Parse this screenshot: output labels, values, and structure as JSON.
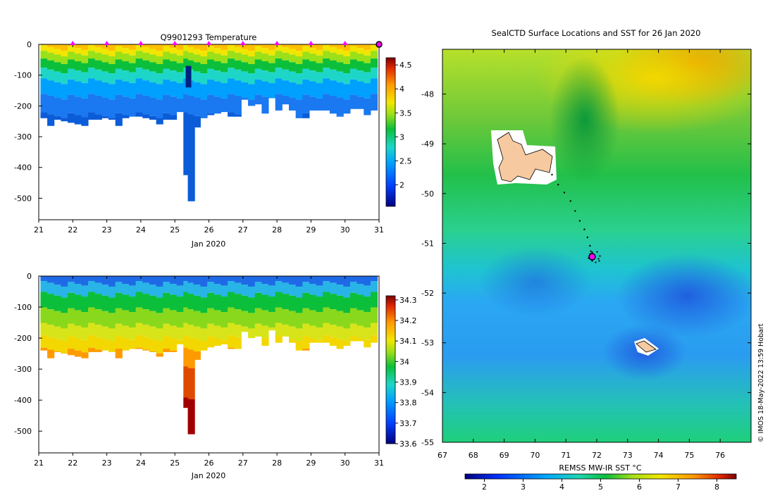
{
  "chart_data": [
    {
      "type": "heatmap",
      "title": "Q9901293  Temperature",
      "xlabel": "Jan 2020",
      "ylabel": "",
      "x_ticks": [
        "21",
        "22",
        "23",
        "24",
        "25",
        "26",
        "27",
        "28",
        "29",
        "30",
        "31"
      ],
      "xlim": [
        21,
        31
      ],
      "y_ticks": [
        "0",
        "-100",
        "-200",
        "-300",
        "-400",
        "-500"
      ],
      "ylim": [
        -570,
        0
      ],
      "colorbar": {
        "ticks": [
          "4.5",
          "4",
          "3.5",
          "3",
          "2.5",
          "2"
        ],
        "range": [
          1.55,
          4.65
        ]
      },
      "marker_days": [
        22,
        23,
        24,
        25,
        26,
        27,
        28,
        29,
        30
      ],
      "current_day": 31,
      "profiles": [
        {
          "day": 21.15,
          "depth": 240
        },
        {
          "day": 21.35,
          "depth": 265
        },
        {
          "day": 21.55,
          "depth": 245
        },
        {
          "day": 21.75,
          "depth": 250
        },
        {
          "day": 21.95,
          "depth": 255
        },
        {
          "day": 22.15,
          "depth": 260
        },
        {
          "day": 22.35,
          "depth": 265
        },
        {
          "day": 22.55,
          "depth": 245
        },
        {
          "day": 22.75,
          "depth": 245
        },
        {
          "day": 22.95,
          "depth": 240
        },
        {
          "day": 23.15,
          "depth": 245
        },
        {
          "day": 23.35,
          "depth": 265
        },
        {
          "day": 23.55,
          "depth": 240
        },
        {
          "day": 23.75,
          "depth": 235
        },
        {
          "day": 23.95,
          "depth": 235
        },
        {
          "day": 24.15,
          "depth": 240
        },
        {
          "day": 24.35,
          "depth": 245
        },
        {
          "day": 24.55,
          "depth": 260
        },
        {
          "day": 24.75,
          "depth": 245
        },
        {
          "day": 24.95,
          "depth": 245
        },
        {
          "day": 25.15,
          "depth": 220
        },
        {
          "day": 25.35,
          "depth": 425
        },
        {
          "day": 25.48,
          "depth": 510
        },
        {
          "day": 25.65,
          "depth": 270
        },
        {
          "day": 25.85,
          "depth": 240
        },
        {
          "day": 26.05,
          "depth": 230
        },
        {
          "day": 26.25,
          "depth": 225
        },
        {
          "day": 26.45,
          "depth": 220
        },
        {
          "day": 26.65,
          "depth": 235
        },
        {
          "day": 26.85,
          "depth": 235
        },
        {
          "day": 27.05,
          "depth": 180
        },
        {
          "day": 27.25,
          "depth": 200
        },
        {
          "day": 27.45,
          "depth": 195
        },
        {
          "day": 27.65,
          "depth": 225
        },
        {
          "day": 27.85,
          "depth": 175
        },
        {
          "day": 28.05,
          "depth": 215
        },
        {
          "day": 28.25,
          "depth": 195
        },
        {
          "day": 28.45,
          "depth": 215
        },
        {
          "day": 28.65,
          "depth": 240
        },
        {
          "day": 28.85,
          "depth": 240
        },
        {
          "day": 29.05,
          "depth": 215
        },
        {
          "day": 29.25,
          "depth": 215
        },
        {
          "day": 29.45,
          "depth": 215
        },
        {
          "day": 29.65,
          "depth": 225
        },
        {
          "day": 29.85,
          "depth": 235
        },
        {
          "day": 30.05,
          "depth": 225
        },
        {
          "day": 30.25,
          "depth": 210
        },
        {
          "day": 30.45,
          "depth": 210
        },
        {
          "day": 30.65,
          "depth": 230
        },
        {
          "day": 30.85,
          "depth": 215
        }
      ]
    },
    {
      "type": "heatmap",
      "title": "",
      "xlabel": "Jan 2020",
      "ylabel": "",
      "x_ticks": [
        "21",
        "22",
        "23",
        "24",
        "25",
        "26",
        "27",
        "28",
        "29",
        "30",
        "31"
      ],
      "xlim": [
        21,
        31
      ],
      "y_ticks": [
        "0",
        "-100",
        "-200",
        "-300",
        "-400",
        "-500"
      ],
      "ylim": [
        -570,
        0
      ],
      "colorbar": {
        "ticks": [
          "34.3",
          "34.2",
          "34.1",
          "34",
          "33.9",
          "33.8",
          "33.7",
          "33.6"
        ],
        "range": [
          33.6,
          34.32
        ]
      }
    },
    {
      "type": "heatmap",
      "title": "SealCTD Surface Locations and SST for 26 Jan 2020",
      "xlabel": "",
      "ylabel": "",
      "x_ticks": [
        "67",
        "68",
        "69",
        "70",
        "71",
        "72",
        "73",
        "74",
        "75",
        "76"
      ],
      "xlim": [
        67,
        77
      ],
      "y_ticks": [
        "-48",
        "-49",
        "-50",
        "-51",
        "-52",
        "-53",
        "-54",
        "-55"
      ],
      "ylim": [
        -55,
        -47.1
      ],
      "colorbar": {
        "label": "REMSS MW-IR SST °C",
        "ticks": [
          "2",
          "3",
          "4",
          "5",
          "6",
          "7",
          "8"
        ],
        "range": [
          1.5,
          8.5
        ]
      },
      "track": [
        {
          "lon": 70.55,
          "lat": -49.62
        },
        {
          "lon": 70.75,
          "lat": -49.82
        },
        {
          "lon": 70.95,
          "lat": -49.98
        },
        {
          "lon": 71.15,
          "lat": -50.15
        },
        {
          "lon": 71.3,
          "lat": -50.35
        },
        {
          "lon": 71.45,
          "lat": -50.55
        },
        {
          "lon": 71.6,
          "lat": -50.72
        },
        {
          "lon": 71.7,
          "lat": -50.88
        },
        {
          "lon": 71.78,
          "lat": -51.05
        },
        {
          "lon": 71.85,
          "lat": -51.18
        }
      ],
      "current_position": {
        "lon": 71.92,
        "lat": -51.27
      }
    }
  ],
  "credit": "© IMOS 18-May-2022 13:59 Hobart"
}
